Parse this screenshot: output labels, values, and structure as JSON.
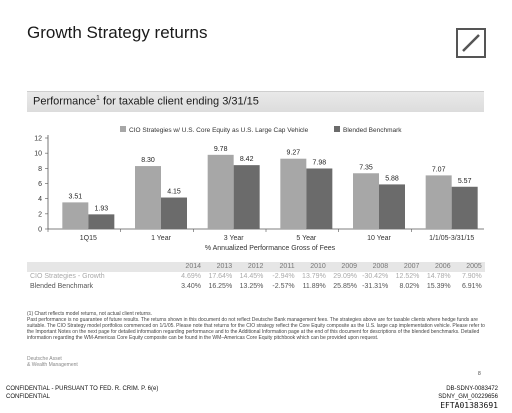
{
  "page": {
    "title": "Growth Strategy returns",
    "section_title": "Performance",
    "section_title_sup": "1",
    "section_title_rest": " for taxable client ending 3/31/15"
  },
  "chart_data": {
    "type": "bar",
    "categories": [
      "1Q15",
      "1 Year",
      "3 Year",
      "5 Year",
      "10 Year",
      "1/1/05-3/31/15"
    ],
    "series": [
      {
        "name": "CIO Strategies w/ U.S. Core Equity as U.S. Large Cap Vehicle",
        "values": [
          3.51,
          8.3,
          9.78,
          9.27,
          7.35,
          7.07
        ],
        "labels": [
          "3.51",
          "8.30",
          "9.78",
          "9.27",
          "7.35",
          "7.07"
        ],
        "color": "#a7a7a7"
      },
      {
        "name": "Blended Benchmark",
        "values": [
          1.93,
          4.15,
          8.42,
          7.98,
          5.88,
          5.57
        ],
        "labels": [
          "1.93",
          "4.15",
          "8.42",
          "7.98",
          "5.88",
          "5.57"
        ],
        "color": "#6b6b6b"
      }
    ],
    "xlabel": "% Annualized Performance Gross of Fees",
    "ylabel": "",
    "ylim": [
      0,
      12
    ],
    "yticks": [
      0,
      2,
      4,
      6,
      8,
      10,
      12
    ],
    "grid": false,
    "legend_position": "top-center"
  },
  "table": {
    "years": [
      "2014",
      "2013",
      "2012",
      "2011",
      "2010",
      "2009",
      "2008",
      "2007",
      "2006",
      "2005"
    ],
    "rows": [
      {
        "label": "CIO Strategies - Growth",
        "values": [
          "4.69%",
          "17.64%",
          "14.45%",
          "-2.94%",
          "13.79%",
          "29.09%",
          "-30.42%",
          "12.52%",
          "14.78%",
          "7.90%"
        ]
      },
      {
        "label": "Blended Benchmark",
        "values": [
          "3.40%",
          "16.25%",
          "13.25%",
          "-2.57%",
          "11.89%",
          "25.85%",
          "-31.31%",
          "8.02%",
          "15.39%",
          "6.91%"
        ]
      }
    ]
  },
  "notes": {
    "n1": "(1) Chart reflects model returns, not actual client returns.",
    "p1": "Past performance is no guarantee of future results. The returns shown in this document do not reflect Deutsche Bank management fees. The strategies above are for taxable clients where hedge funds are suitable. The CIO Strategy model portfolios commenced on 1/1/05. Please note that returns for the CIO strategy reflect the Core Equity composite as the U.S. large cap implementation vehicle. Please refer to the Important Notes on the next page for detailed information regarding performance and to the Additional Information page at the end of this document for descriptions of the blended benchmarks. Detailed information regarding the WM-Americas Core Equity composite can be found in the WM–Americas Core Equity pitchbook which can be provided upon request."
  },
  "brand": {
    "line1": "Deutsche Asset",
    "line2": "& Wealth Management"
  },
  "page_number": "8",
  "footer": {
    "confidential1": "CONFIDENTIAL - PURSUANT TO FED. R. CRIM. P. 6(e)",
    "confidential2": "CONFIDENTIAL",
    "doc1": "DB-SDNY-0083472",
    "doc2": "SDNY_GM_00229656",
    "efta": "EFTA01383691"
  }
}
